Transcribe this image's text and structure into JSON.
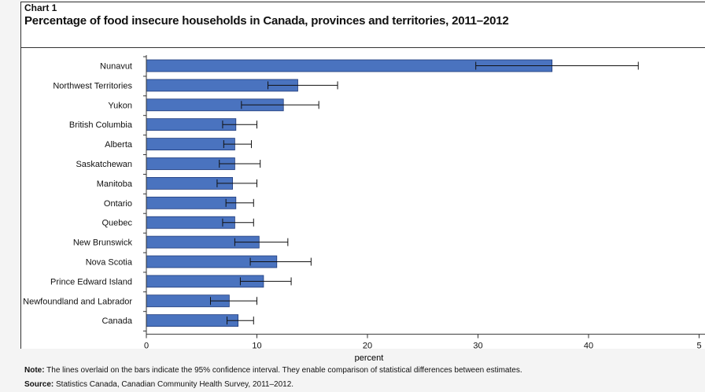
{
  "header": {
    "chart_number": "Chart 1",
    "title": "Percentage of food insecure households in Canada, provinces and territories, 2011–2012"
  },
  "footer": {
    "note_label": "Note:",
    "note_text": "The lines overlaid on the bars indicate the 95% confidence interval. They enable comparison of statistical differences between estimates.",
    "source_label": "Source:",
    "source_text": "Statistics Canada, Canadian Community Health Survey, 2011–2012."
  },
  "colors": {
    "bar_fill": "#4a73bf",
    "bar_stroke": "#1f3a7a",
    "error_bar": "#111111"
  },
  "chart_data": {
    "type": "bar",
    "orientation": "horizontal",
    "categories": [
      "Nunavut",
      "Northwest Territories",
      "Yukon",
      "British Columbia",
      "Alberta",
      "Saskatchewan",
      "Manitoba",
      "Ontario",
      "Quebec",
      "New Brunswick",
      "Nova Scotia",
      "Prince Edward Island",
      "Newfoundland and Labrador",
      "Canada"
    ],
    "values": [
      36.7,
      13.7,
      12.4,
      8.1,
      8.0,
      8.0,
      7.8,
      8.1,
      8.0,
      10.2,
      11.8,
      10.6,
      7.5,
      8.3
    ],
    "ci_low": [
      29.8,
      11.0,
      8.6,
      6.9,
      7.0,
      6.6,
      6.4,
      7.2,
      6.9,
      8.0,
      9.4,
      8.5,
      5.8,
      7.3
    ],
    "ci_high": [
      44.5,
      17.3,
      15.6,
      10.0,
      9.5,
      10.3,
      10.0,
      9.7,
      9.7,
      12.8,
      14.9,
      13.1,
      10.0,
      9.7
    ],
    "xlabel": "percent",
    "xlim": [
      0,
      50
    ],
    "xticks": [
      "0",
      "10",
      "20",
      "30",
      "40",
      "5"
    ],
    "grid": false,
    "legend": "none"
  }
}
